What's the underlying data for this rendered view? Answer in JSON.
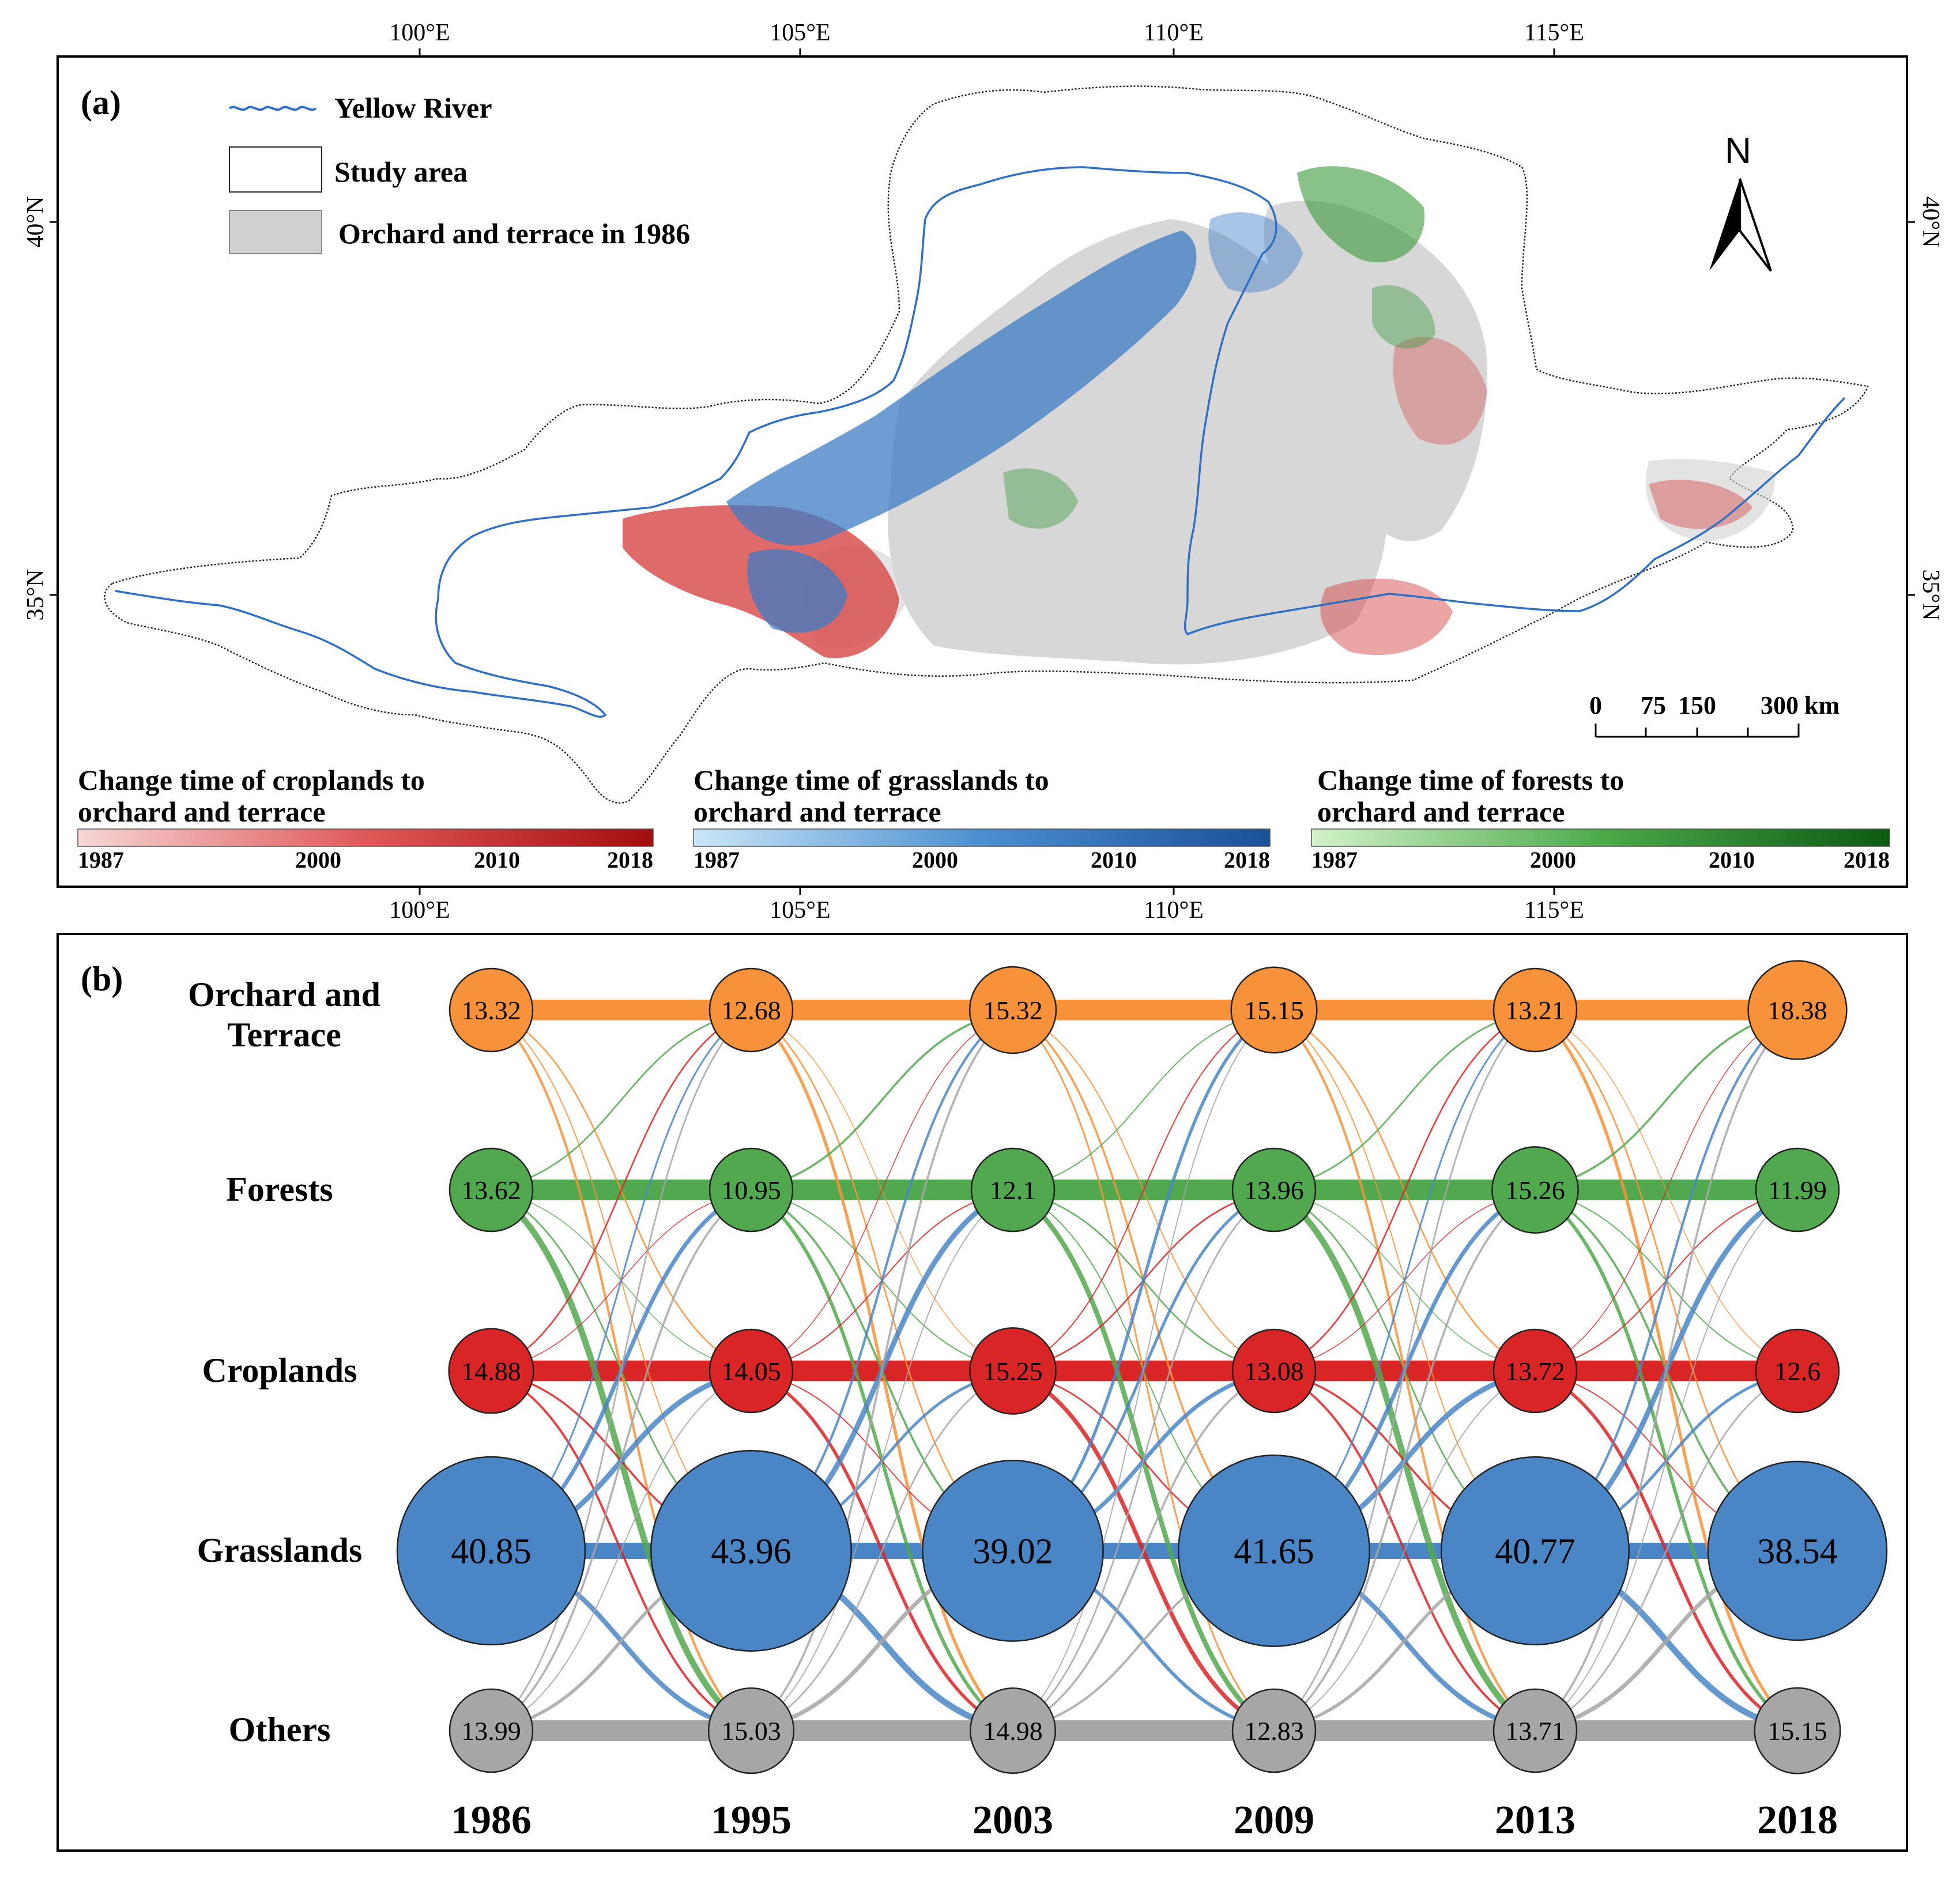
{
  "panel_a": {
    "label": "(a)",
    "lon_ticks": [
      "100°E",
      "105°E",
      "110°E",
      "115°E"
    ],
    "lat_ticks": [
      "40°N",
      "35°N"
    ],
    "legend": {
      "river": "Yellow River",
      "study_area": "Study area",
      "orchard_1986": "Orchard and terrace in 1986"
    },
    "north_label": "N",
    "scale_bar": {
      "ticks": [
        "0",
        "75",
        "150",
        "300"
      ],
      "unit": "km"
    },
    "colorbars": [
      {
        "title_line1": "Change time of croplands to",
        "title_line2": "orchard and terrace",
        "ticks": [
          "1987",
          "2000",
          "2010",
          "2018"
        ],
        "color_start": "#f6d6d6",
        "color_end": "#a30d0d"
      },
      {
        "title_line1": "Change time of grasslands to",
        "title_line2": "orchard and terrace",
        "ticks": [
          "1987",
          "2000",
          "2010",
          "2018"
        ],
        "color_start": "#c9e6f7",
        "color_end": "#1c4f9a"
      },
      {
        "title_line1": "Change time of forests to",
        "title_line2": "orchard and terrace",
        "ticks": [
          "1987",
          "2000",
          "2010",
          "2018"
        ],
        "color_start": "#d2f2c9",
        "color_end": "#0d5a12"
      }
    ],
    "colors": {
      "river": "#2f6fc4",
      "orchard_fill": "#d0d0d0",
      "cropland": "#d64545",
      "grassland": "#3e7cc6",
      "forest": "#3a9a3a"
    }
  },
  "panel_b": {
    "label": "(b)",
    "years": [
      "1986",
      "1995",
      "2003",
      "2009",
      "2013",
      "2018"
    ],
    "categories": [
      {
        "name_line1": "Orchard and",
        "name_line2": "Terrace",
        "color": "#f7923a",
        "values": [
          13.32,
          12.68,
          15.32,
          15.15,
          13.21,
          18.38
        ]
      },
      {
        "name_line1": "Forests",
        "name_line2": "",
        "color": "#52a84f",
        "values": [
          13.62,
          10.95,
          12.1,
          13.96,
          15.26,
          11.99
        ]
      },
      {
        "name_line1": "Croplands",
        "name_line2": "",
        "color": "#d92526",
        "values": [
          14.88,
          14.05,
          15.25,
          13.08,
          13.72,
          12.6
        ]
      },
      {
        "name_line1": "Grasslands",
        "name_line2": "",
        "color": "#4a86c5",
        "values": [
          40.85,
          43.96,
          39.02,
          41.65,
          40.77,
          38.54
        ]
      },
      {
        "name_line1": "Others",
        "name_line2": "",
        "color": "#a6a6a6",
        "values": [
          13.99,
          15.03,
          14.98,
          12.83,
          13.71,
          15.15
        ]
      }
    ]
  }
}
